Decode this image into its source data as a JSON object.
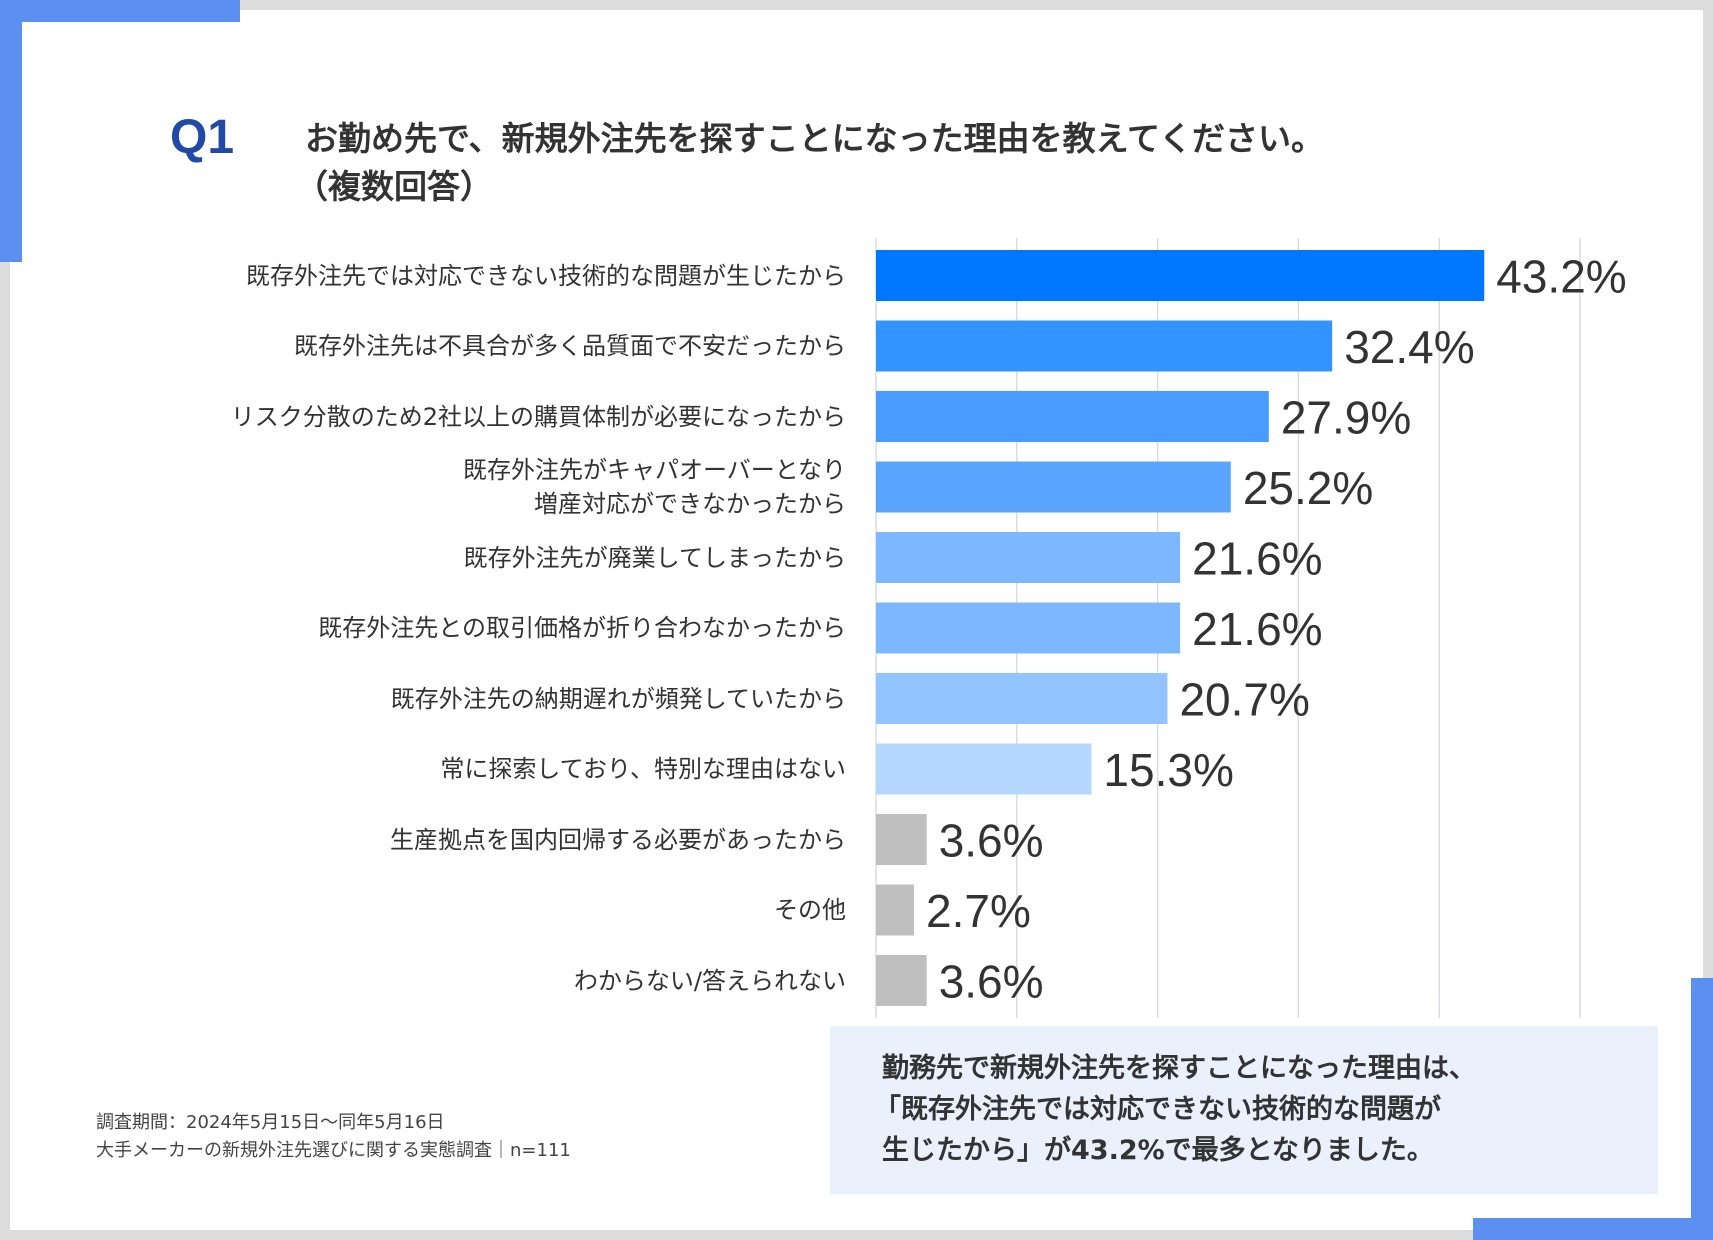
{
  "question": {
    "number": "Q1",
    "title_line1": "お勤め先で、新規外注先を探すことになった理由を教えてください。",
    "title_line2": "（複数回答）"
  },
  "chart_data": {
    "type": "bar",
    "orientation": "horizontal",
    "categories": [
      "既存外注先では対応できない技術的な問題が生じたから",
      "既存外注先は不具合が多く品質面で不安だったから",
      "リスク分散のため2社以上の購買体制が必要になったから",
      "既存外注先がキャパオーバーとなり\n増産対応ができなかったから",
      "既存外注先が廃業してしまったから",
      "既存外注先との取引価格が折り合わなかったから",
      "既存外注先の納期遅れが頻発していたから",
      "常に探索しており、特別な理由はない",
      "生産拠点を国内回帰する必要があったから",
      "その他",
      "わからない/答えられない"
    ],
    "values": [
      43.2,
      32.4,
      27.9,
      25.2,
      21.6,
      21.6,
      20.7,
      15.3,
      3.6,
      2.7,
      3.6
    ],
    "value_labels": [
      "43.2%",
      "32.4%",
      "27.9%",
      "25.2%",
      "21.6%",
      "21.6%",
      "20.7%",
      "15.3%",
      "3.6%",
      "2.7%",
      "3.6%"
    ],
    "colors": [
      "#0077ff",
      "#3393ff",
      "#4a9bff",
      "#5aa6ff",
      "#7db8ff",
      "#7db8ff",
      "#92c4ff",
      "#b3d7ff",
      "#bfbfbf",
      "#bfbfbf",
      "#bfbfbf"
    ],
    "xlim": [
      0,
      50
    ],
    "grid": true,
    "gridline_values": [
      10,
      20,
      30,
      40,
      50
    ]
  },
  "summary": {
    "line1": "勤務先で新規外注先を探すことになった理由は、",
    "line2": "「既存外注先では対応できない技術的な問題が",
    "line3": "生じたから」が43.2%で最多となりました。"
  },
  "footer": {
    "period": "調査期間：2024年5月15日〜同年5月16日",
    "survey": "大手メーカーの新規外注先選びに関する実態調査｜n=111"
  },
  "colors": {
    "accent": "#5b8ff0",
    "question_number": "#1f4aa8",
    "summary_bg": "#eaf0fc"
  }
}
